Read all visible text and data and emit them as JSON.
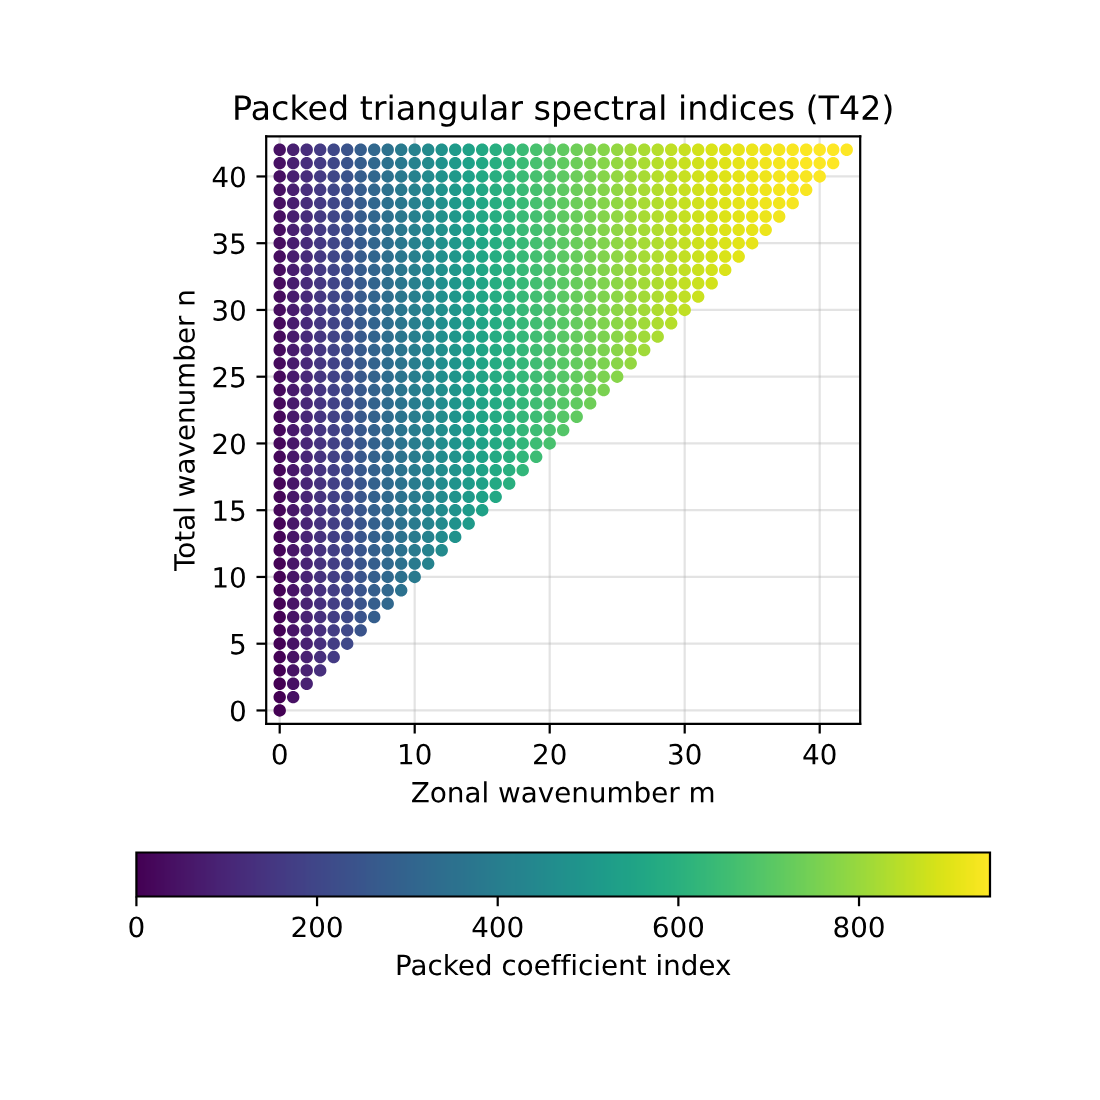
{
  "chart_data": {
    "type": "scatter",
    "title": "Packed triangular spectral indices (T42)",
    "xlabel": "Zonal wavenumber m",
    "ylabel": "Total wavenumber n",
    "clabel": "Packed coefficient index",
    "xlim": [
      -1,
      43
    ],
    "ylim": [
      -1,
      43
    ],
    "xticks": [
      0,
      10,
      20,
      30,
      40
    ],
    "yticks": [
      0,
      5,
      10,
      15,
      20,
      25,
      30,
      35,
      40
    ],
    "clim": [
      0,
      945
    ],
    "cticks": [
      0,
      200,
      400,
      600,
      800
    ],
    "grid": true,
    "marker": "circle",
    "x": [
      0,
      0,
      0,
      0,
      0,
      0,
      0,
      0,
      0,
      0,
      0,
      0,
      0,
      0,
      0,
      0,
      0,
      0,
      0,
      0,
      0,
      0,
      0,
      0,
      0,
      0,
      0,
      0,
      0,
      0,
      0,
      0,
      0,
      0,
      0,
      0,
      0,
      0,
      0,
      0,
      0,
      0,
      0,
      1,
      1,
      1,
      1,
      1,
      1,
      1,
      1,
      1,
      1,
      1,
      1,
      1,
      1,
      1,
      1,
      1,
      1,
      1,
      1,
      1,
      1,
      1,
      1,
      1,
      1,
      1,
      1,
      1,
      1,
      1,
      1,
      1,
      1,
      1,
      1,
      1,
      1,
      1,
      1,
      1,
      1,
      2,
      2,
      2,
      2,
      2,
      2,
      2,
      2,
      2,
      2,
      2,
      2,
      2,
      2,
      2,
      2,
      2,
      2,
      2,
      2,
      2,
      2,
      2,
      2,
      2,
      2,
      2,
      2,
      2,
      2,
      2,
      2,
      2,
      2,
      2,
      2,
      2,
      2,
      2,
      2,
      2,
      3,
      3,
      3,
      3,
      3,
      3,
      3,
      3,
      3,
      3,
      3,
      3,
      3,
      3,
      3,
      3,
      3,
      3,
      3,
      3,
      3,
      3,
      3,
      3,
      3,
      3,
      3,
      3,
      3,
      3,
      3,
      3,
      3,
      3,
      3,
      3,
      3,
      3,
      3,
      3,
      4,
      4,
      4,
      4,
      4,
      4,
      4,
      4,
      4,
      4,
      4,
      4,
      4,
      4,
      4,
      4,
      4,
      4,
      4,
      4,
      4,
      4,
      4,
      4,
      4,
      4,
      4,
      4,
      4,
      4,
      4,
      4,
      4,
      4,
      4,
      4,
      4,
      4,
      4,
      5,
      5,
      5,
      5,
      5,
      5,
      5,
      5,
      5,
      5,
      5,
      5,
      5,
      5,
      5,
      5,
      5,
      5,
      5,
      5,
      5,
      5,
      5,
      5,
      5,
      5,
      5,
      5,
      5,
      5,
      5,
      5,
      5,
      5,
      5,
      5,
      5,
      5,
      6,
      6,
      6,
      6,
      6,
      6,
      6,
      6,
      6,
      6,
      6,
      6,
      6,
      6,
      6,
      6,
      6,
      6,
      6,
      6,
      6,
      6,
      6,
      6,
      6,
      6,
      6,
      6,
      6,
      6,
      6,
      6,
      6,
      6,
      6,
      6,
      6,
      7,
      7,
      7,
      7,
      7,
      7,
      7,
      7,
      7,
      7,
      7,
      7,
      7,
      7,
      7,
      7,
      7,
      7,
      7,
      7,
      7,
      7,
      7,
      7,
      7,
      7,
      7,
      7,
      7,
      7,
      7,
      7,
      7,
      7,
      7,
      7,
      8,
      8,
      8,
      8,
      8,
      8,
      8,
      8,
      8,
      8,
      8,
      8,
      8,
      8,
      8,
      8,
      8,
      8,
      8,
      8,
      8,
      8,
      8,
      8,
      8,
      8,
      8,
      8,
      8,
      8,
      8,
      8,
      8,
      8,
      8,
      9,
      9,
      9,
      9,
      9,
      9,
      9,
      9,
      9,
      9,
      9,
      9,
      9,
      9,
      9,
      9,
      9,
      9,
      9,
      9,
      9,
      9,
      9,
      9,
      9,
      9,
      9,
      9,
      9,
      9,
      9,
      9,
      9,
      9,
      10,
      10,
      10,
      10,
      10,
      10,
      10,
      10,
      10,
      10,
      10,
      10,
      10,
      10,
      10,
      10,
      10,
      10,
      10,
      10,
      10,
      10,
      10,
      10,
      10,
      10,
      10,
      10,
      10,
      10,
      10,
      10,
      10,
      11,
      11,
      11,
      11,
      11,
      11,
      11,
      11,
      11,
      11,
      11,
      11,
      11,
      11,
      11,
      11,
      11,
      11,
      11,
      11,
      11,
      11,
      11,
      11,
      11,
      11,
      11,
      11,
      11,
      11,
      11,
      11,
      12,
      12,
      12,
      12,
      12,
      12,
      12,
      12,
      12,
      12,
      12,
      12,
      12,
      12,
      12,
      12,
      12,
      12,
      12,
      12,
      12,
      12,
      12,
      12,
      12,
      12,
      12,
      12,
      12,
      12,
      12,
      13,
      13,
      13,
      13,
      13,
      13,
      13,
      13,
      13,
      13,
      13,
      13,
      13,
      13,
      13,
      13,
      13,
      13,
      13,
      13,
      13,
      13,
      13,
      13,
      13,
      13,
      13,
      13,
      13,
      13,
      14,
      14,
      14,
      14,
      14,
      14,
      14,
      14,
      14,
      14,
      14,
      14,
      14,
      14,
      14,
      14,
      14,
      14,
      14,
      14,
      14,
      14,
      14,
      14,
      14,
      14,
      14,
      14,
      14,
      15,
      15,
      15,
      15,
      15,
      15,
      15,
      15,
      15,
      15,
      15,
      15,
      15,
      15,
      15,
      15,
      15,
      15,
      15,
      15,
      15,
      15,
      15,
      15,
      15,
      15,
      15,
      15,
      16,
      16,
      16,
      16,
      16,
      16,
      16,
      16,
      16,
      16,
      16,
      16,
      16,
      16,
      16,
      16,
      16,
      16,
      16,
      16,
      16,
      16,
      16,
      16,
      16,
      16,
      16,
      17,
      17,
      17,
      17,
      17,
      17,
      17,
      17,
      17,
      17,
      17,
      17,
      17,
      17,
      17,
      17,
      17,
      17,
      17,
      17,
      17,
      17,
      17,
      17,
      17,
      17,
      18,
      18,
      18,
      18,
      18,
      18,
      18,
      18,
      18,
      18,
      18,
      18,
      18,
      18,
      18,
      18,
      18,
      18,
      18,
      18,
      18,
      18,
      18,
      18,
      18,
      19,
      19,
      19,
      19,
      19,
      19,
      19,
      19,
      19,
      19,
      19,
      19,
      19,
      19,
      19,
      19,
      19,
      19,
      19,
      19,
      19,
      19,
      19,
      19,
      20,
      20,
      20,
      20,
      20,
      20,
      20,
      20,
      20,
      20,
      20,
      20,
      20,
      20,
      20,
      20,
      20,
      20,
      20,
      20,
      20,
      20,
      20,
      21,
      21,
      21,
      21,
      21,
      21,
      21,
      21,
      21,
      21,
      21,
      21,
      21,
      21,
      21,
      21,
      21,
      21,
      21,
      21,
      21,
      21,
      22,
      22,
      22,
      22,
      22,
      22,
      22,
      22,
      22,
      22,
      22,
      22,
      22,
      22,
      22,
      22,
      22,
      22,
      22,
      22,
      22,
      23,
      23,
      23,
      23,
      23,
      23,
      23,
      23,
      23,
      23,
      23,
      23,
      23,
      23,
      23,
      23,
      23,
      23,
      23,
      23,
      24,
      24,
      24,
      24,
      24,
      24,
      24,
      24,
      24,
      24,
      24,
      24,
      24,
      24,
      24,
      24,
      24,
      24,
      24,
      25,
      25,
      25,
      25,
      25,
      25,
      25,
      25,
      25,
      25,
      25,
      25,
      25,
      25,
      25,
      25,
      25,
      25,
      26,
      26,
      26,
      26,
      26,
      26,
      26,
      26,
      26,
      26,
      26,
      26,
      26,
      26,
      26,
      26,
      26,
      27,
      27,
      27,
      27,
      27,
      27,
      27,
      27,
      27,
      27,
      27,
      27,
      27,
      27,
      27,
      27,
      28,
      28,
      28,
      28,
      28,
      28,
      28,
      28,
      28,
      28,
      28,
      28,
      28,
      28,
      28,
      29,
      29,
      29,
      29,
      29,
      29,
      29,
      29,
      29,
      29,
      29,
      29,
      29,
      29,
      30,
      30,
      30,
      30,
      30,
      30,
      30,
      30,
      30,
      30,
      30,
      30,
      30,
      31,
      31,
      31,
      31,
      31,
      31,
      31,
      31,
      31,
      31,
      31,
      31,
      32,
      32,
      32,
      32,
      32,
      32,
      32,
      32,
      32,
      32,
      32,
      33,
      33,
      33,
      33,
      33,
      33,
      33,
      33,
      33,
      33,
      34,
      34,
      34,
      34,
      34,
      34,
      34,
      34,
      34,
      35,
      35,
      35,
      35,
      35,
      35,
      35,
      35,
      36,
      36,
      36,
      36,
      36,
      36,
      36,
      37,
      37,
      37,
      37,
      37,
      37,
      38,
      38,
      38,
      38,
      38,
      39,
      39,
      39,
      39,
      40,
      40,
      40,
      41,
      41,
      42
    ],
    "values": [
      0,
      1,
      2,
      3,
      4,
      5,
      6,
      7,
      8,
      9,
      10,
      11,
      12,
      13,
      14,
      15,
      16,
      17,
      18,
      19,
      20,
      21,
      22,
      23,
      24,
      25,
      26,
      27,
      28,
      29,
      30,
      31,
      32,
      33,
      34,
      35,
      36,
      37,
      38,
      39,
      40,
      41,
      42,
      1,
      2,
      3,
      4,
      5,
      6,
      7,
      8,
      9,
      10,
      11,
      12,
      13,
      14,
      15,
      16,
      17,
      18,
      19,
      20,
      21,
      22,
      23,
      24,
      25,
      26,
      27,
      28,
      29,
      30,
      31,
      32,
      33,
      34,
      35,
      36,
      37,
      38,
      39,
      40,
      41,
      42,
      2,
      3,
      4,
      5,
      6,
      7,
      8,
      9,
      10,
      11,
      12,
      13,
      14,
      15,
      16,
      17,
      18,
      19,
      20,
      21,
      22,
      23,
      24,
      25,
      26,
      27,
      28,
      29,
      30,
      31,
      32,
      33,
      34,
      35,
      36,
      37,
      38,
      39,
      40,
      41,
      42,
      3,
      4,
      5,
      6,
      7,
      8,
      9,
      10,
      11,
      12,
      13,
      14,
      15,
      16,
      17,
      18,
      19,
      20,
      21,
      22,
      23,
      24,
      25,
      26,
      27,
      28,
      29,
      30,
      31,
      32,
      33,
      34,
      35,
      36,
      37,
      38,
      39,
      40,
      41,
      42,
      4,
      5,
      6,
      7,
      8,
      9,
      10,
      11,
      12,
      13,
      14,
      15,
      16,
      17,
      18,
      19,
      20,
      21,
      22,
      23,
      24,
      25,
      26,
      27,
      28,
      29,
      30,
      31,
      32,
      33,
      34,
      35,
      36,
      37,
      38,
      39,
      40,
      41,
      42,
      5,
      6,
      7,
      8,
      9,
      10,
      11,
      12,
      13,
      14,
      15,
      16,
      17,
      18,
      19,
      20,
      21,
      22,
      23,
      24,
      25,
      26,
      27,
      28,
      29,
      30,
      31,
      32,
      33,
      34,
      35,
      36,
      37,
      38,
      39,
      40,
      41,
      42,
      6,
      7,
      8,
      9,
      10,
      11,
      12,
      13,
      14,
      15,
      16,
      17,
      18,
      19,
      20,
      21,
      22,
      23,
      24,
      25,
      26,
      27,
      28,
      29,
      30,
      31,
      32,
      33,
      34,
      35,
      36,
      37,
      38,
      39,
      40,
      41,
      42,
      7,
      8,
      9,
      10,
      11,
      12,
      13,
      14,
      15,
      16,
      17,
      18,
      19,
      20,
      21,
      22,
      23,
      24,
      25,
      26,
      27,
      28,
      29,
      30,
      31,
      32,
      33,
      34,
      35,
      36,
      37,
      38,
      39,
      40,
      41,
      42,
      8,
      9,
      10,
      11,
      12,
      13,
      14,
      15,
      16,
      17,
      18,
      19,
      20,
      21,
      22,
      23,
      24,
      25,
      26,
      27,
      28,
      29,
      30,
      31,
      32,
      33,
      34,
      35,
      36,
      37,
      38,
      39,
      40,
      41,
      42,
      9,
      10,
      11,
      12,
      13,
      14,
      15,
      16,
      17,
      18,
      19,
      20,
      21,
      22,
      23,
      24,
      25,
      26,
      27,
      28,
      29,
      30,
      31,
      32,
      33,
      34,
      35,
      36,
      37,
      38,
      39,
      40,
      41,
      42,
      10,
      11,
      12,
      13,
      14,
      15,
      16,
      17,
      18,
      19,
      20,
      21,
      22,
      23,
      24,
      25,
      26,
      27,
      28,
      29,
      30,
      31,
      32,
      33,
      34,
      35,
      36,
      37,
      38,
      39,
      40,
      41,
      42,
      11,
      12,
      13,
      14,
      15,
      16,
      17,
      18,
      19,
      20,
      21,
      22,
      23,
      24,
      25,
      26,
      27,
      28,
      29,
      30,
      31,
      32,
      33,
      34,
      35,
      36,
      37,
      38,
      39,
      40,
      41,
      42,
      12,
      13,
      14,
      15,
      16,
      17,
      18,
      19,
      20,
      21,
      22,
      23,
      24,
      25,
      26,
      27,
      28,
      29,
      30,
      31,
      32,
      33,
      34,
      35,
      36,
      37,
      38,
      39,
      40,
      41,
      42,
      13,
      14,
      15,
      16,
      17,
      18,
      19,
      20,
      21,
      22,
      23,
      24,
      25,
      26,
      27,
      28,
      29,
      30,
      31,
      32,
      33,
      34,
      35,
      36,
      37,
      38,
      39,
      40,
      41,
      42,
      14,
      15,
      16,
      17,
      18,
      19,
      20,
      21,
      22,
      23,
      24,
      25,
      26,
      27,
      28,
      29,
      30,
      31,
      32,
      33,
      34,
      35,
      36,
      37,
      38,
      39,
      40,
      41,
      42,
      15,
      16,
      17,
      18,
      19,
      20,
      21,
      22,
      23,
      24,
      25,
      26,
      27,
      28,
      29,
      30,
      31,
      32,
      33,
      34,
      35,
      36,
      37,
      38,
      39,
      40,
      41,
      42,
      16,
      17,
      18,
      19,
      20,
      21,
      22,
      23,
      24,
      25,
      26,
      27,
      28,
      29,
      30,
      31,
      32,
      33,
      34,
      35,
      36,
      37,
      38,
      39,
      40,
      41,
      42,
      17,
      18,
      19,
      20,
      21,
      22,
      23,
      24,
      25,
      26,
      27,
      28,
      29,
      30,
      31,
      32,
      33,
      34,
      35,
      36,
      37,
      38,
      39,
      40,
      41,
      42,
      18,
      19,
      20,
      21,
      22,
      23,
      24,
      25,
      26,
      27,
      28,
      29,
      30,
      31,
      32,
      33,
      34,
      35,
      36,
      37,
      38,
      39,
      40,
      41,
      42,
      19,
      20,
      21,
      22,
      23,
      24,
      25,
      26,
      27,
      28,
      29,
      30,
      31,
      32,
      33,
      34,
      35,
      36,
      37,
      38,
      39,
      40,
      41,
      42,
      20,
      21,
      22,
      23,
      24,
      25,
      26,
      27,
      28,
      29,
      30,
      31,
      32,
      33,
      34,
      35,
      36,
      37,
      38,
      39,
      40,
      41,
      42,
      21,
      22,
      23,
      24,
      25,
      26,
      27,
      28,
      29,
      30,
      31,
      32,
      33,
      34,
      35,
      36,
      37,
      38,
      39,
      40,
      41,
      42,
      22,
      23,
      24,
      25,
      26,
      27,
      28,
      29,
      30,
      31,
      32,
      33,
      34,
      35,
      36,
      37,
      38,
      39,
      40,
      41,
      42,
      23,
      24,
      25,
      26,
      27,
      28,
      29,
      30,
      31,
      32,
      33,
      34,
      35,
      36,
      37,
      38,
      39,
      40,
      41,
      42,
      24,
      25,
      26,
      27,
      28,
      29,
      30,
      31,
      32,
      33,
      34,
      35,
      36,
      37,
      38,
      39,
      40,
      41,
      42,
      25,
      26,
      27,
      28,
      29,
      30,
      31,
      32,
      33,
      34,
      35,
      36,
      37,
      38,
      39,
      40,
      41,
      42,
      26,
      27,
      28,
      29,
      30,
      31,
      32,
      33,
      34,
      35,
      36,
      37,
      38,
      39,
      40,
      41,
      42,
      27,
      28,
      29,
      30,
      31,
      32,
      33,
      34,
      35,
      36,
      37,
      38,
      39,
      40,
      41,
      42,
      28,
      29,
      30,
      31,
      32,
      33,
      34,
      35,
      36,
      37,
      38,
      39,
      40,
      41,
      42,
      29,
      30,
      31,
      32,
      33,
      34,
      35,
      36,
      37,
      38,
      39,
      40,
      41,
      42,
      30,
      31,
      32,
      33,
      34,
      35,
      36,
      37,
      38,
      39,
      40,
      41,
      42,
      31,
      32,
      33,
      34,
      35,
      36,
      37,
      38,
      39,
      40,
      41,
      42,
      32,
      33,
      34,
      35,
      36,
      37,
      38,
      39,
      40,
      41,
      42,
      33,
      34,
      35,
      36,
      37,
      38,
      39,
      40,
      41,
      42,
      34,
      35,
      36,
      37,
      38,
      39,
      40,
      41,
      42,
      35,
      36,
      37,
      38,
      39,
      40,
      41,
      42,
      36,
      37,
      38,
      39,
      40,
      41,
      42,
      37,
      38,
      39,
      40,
      41,
      42,
      38,
      39,
      40,
      41,
      42,
      39,
      40,
      41,
      42,
      40,
      41,
      42,
      41,
      42,
      42
    ],
    "cvalues": [
      0,
      1,
      2,
      3,
      4,
      5,
      6,
      7,
      8,
      9,
      10,
      11,
      12,
      13,
      14,
      15,
      16,
      17,
      18,
      19,
      20,
      21,
      22,
      23,
      24,
      25,
      26,
      27,
      28,
      29,
      30,
      31,
      32,
      33,
      34,
      35,
      36,
      37,
      38,
      39,
      40,
      41,
      42,
      43,
      44,
      45,
      46,
      47,
      48,
      49,
      50,
      51,
      52,
      53,
      54,
      55,
      56,
      57,
      58,
      59,
      60,
      61,
      62,
      63,
      64,
      65,
      66,
      67,
      68,
      69,
      70,
      71,
      72,
      73,
      74,
      75,
      76,
      77,
      78,
      79,
      80,
      81,
      82,
      83,
      84,
      85,
      86,
      87,
      88,
      89,
      90,
      91,
      92,
      93,
      94,
      95,
      96,
      97,
      98,
      99,
      100,
      101,
      102,
      103,
      104,
      105,
      106,
      107,
      108,
      109,
      110,
      111,
      112,
      113,
      114,
      115,
      116,
      117,
      118,
      119,
      120,
      121,
      122,
      123,
      124,
      125,
      126,
      127,
      128,
      129,
      130,
      131,
      132,
      133,
      134,
      135,
      136,
      137,
      138,
      139,
      140,
      141,
      142,
      143,
      144,
      145,
      146,
      147,
      148,
      149,
      150,
      151,
      152,
      153,
      154,
      155,
      156,
      157,
      158,
      159,
      160,
      161,
      162,
      163,
      164,
      165,
      166,
      167,
      168,
      169,
      170,
      171,
      172,
      173,
      174,
      175,
      176,
      177,
      178,
      179,
      180,
      181,
      182,
      183,
      184,
      185,
      186,
      187,
      188,
      189,
      190,
      191,
      192,
      193,
      194,
      195,
      196,
      197,
      198,
      199,
      200,
      201,
      202,
      203,
      204,
      205,
      206,
      207,
      208,
      209,
      210,
      211,
      212,
      213,
      214,
      215,
      216,
      217,
      218,
      219,
      220,
      221,
      222,
      223,
      224,
      225,
      226,
      227,
      228,
      229,
      230,
      231,
      232,
      233,
      234,
      235,
      236,
      237,
      238,
      239,
      240,
      241,
      242,
      243,
      244,
      245,
      246,
      247,
      248,
      249,
      250,
      251,
      252,
      253,
      254,
      255,
      256,
      257,
      258,
      259,
      260,
      261,
      262,
      263,
      264,
      265,
      266,
      267,
      268,
      269,
      270,
      271,
      272,
      273,
      274,
      275,
      276,
      277,
      278,
      279,
      280,
      281,
      282,
      283,
      284,
      285,
      286,
      287,
      288,
      289,
      290,
      291,
      292,
      293,
      294,
      295,
      296,
      297,
      298,
      299,
      300,
      301,
      302,
      303,
      304,
      305,
      306,
      307,
      308,
      309,
      310,
      311,
      312,
      313,
      314,
      315,
      316,
      317,
      318,
      319,
      320,
      321,
      322,
      323,
      324,
      325,
      326,
      327,
      328,
      329,
      330,
      331,
      332,
      333,
      334,
      335,
      336,
      337,
      338,
      339,
      340,
      341,
      342,
      343,
      344,
      345,
      346,
      347,
      348,
      349,
      350,
      351,
      352,
      353,
      354,
      355,
      356,
      357,
      358,
      359,
      360,
      361,
      362,
      363,
      364,
      365,
      366,
      367,
      368,
      369,
      370,
      371,
      372,
      373,
      374,
      375,
      376,
      377,
      378,
      379,
      380,
      381,
      382,
      383,
      384,
      385,
      386,
      387,
      388,
      389,
      390,
      391,
      392,
      393,
      394,
      395,
      396,
      397,
      398,
      399,
      400,
      401,
      402,
      403,
      404,
      405,
      406,
      407,
      408,
      409,
      410,
      411,
      412,
      413,
      414,
      415,
      416,
      417,
      418,
      419,
      420,
      421,
      422,
      423,
      424,
      425,
      426,
      427,
      428,
      429,
      430,
      431,
      432,
      433,
      434,
      435,
      436,
      437,
      438,
      439,
      440,
      441,
      442,
      443,
      444,
      445,
      446,
      447,
      448,
      449,
      450,
      451,
      452,
      453,
      454,
      455,
      456,
      457,
      458,
      459,
      460,
      461,
      462,
      463,
      464,
      465,
      466,
      467,
      468,
      469,
      470,
      471,
      472,
      473,
      474,
      475,
      476,
      477,
      478,
      479,
      480,
      481,
      482,
      483,
      484,
      485,
      486,
      487,
      488,
      489,
      490,
      491,
      492,
      493,
      494,
      495,
      496,
      497,
      498,
      499,
      500,
      501,
      502,
      503,
      504,
      505,
      506,
      507,
      508,
      509,
      510,
      511,
      512,
      513,
      514,
      515,
      516,
      517,
      518,
      519,
      520,
      521,
      522,
      523,
      524,
      525,
      526,
      527,
      528,
      529,
      530,
      531,
      532,
      533,
      534,
      535,
      536,
      537,
      538,
      539,
      540,
      541,
      542,
      543,
      544,
      545,
      546,
      547,
      548,
      549,
      550,
      551,
      552,
      553,
      554,
      555,
      556,
      557,
      558,
      559,
      560,
      561,
      562,
      563,
      564,
      565,
      566,
      567,
      568,
      569,
      570,
      571,
      572,
      573,
      574,
      575,
      576,
      577,
      578,
      579,
      580,
      581,
      582,
      583,
      584,
      585,
      586,
      587,
      588,
      589,
      590,
      591,
      592,
      593,
      594,
      595,
      596,
      597,
      598,
      599,
      600,
      601,
      602,
      603,
      604,
      605,
      606,
      607,
      608,
      609,
      610,
      611,
      612,
      613,
      614,
      615,
      616,
      617,
      618,
      619,
      620,
      621,
      622,
      623,
      624,
      625,
      626,
      627,
      628,
      629,
      630,
      631,
      632,
      633,
      634,
      635,
      636,
      637,
      638,
      639,
      640,
      641,
      642,
      643,
      644,
      645,
      646,
      647,
      648,
      649,
      650,
      651,
      652,
      653,
      654,
      655,
      656,
      657,
      658,
      659,
      660,
      661,
      662,
      663,
      664,
      665,
      666,
      667,
      668,
      669,
      670,
      671,
      672,
      673,
      674,
      675,
      676,
      677,
      678,
      679,
      680,
      681,
      682,
      683,
      684,
      685,
      686,
      687,
      688,
      689,
      690,
      691,
      692,
      693,
      694,
      695,
      696,
      697,
      698,
      699,
      700,
      701,
      702,
      703,
      704,
      705,
      706,
      707,
      708,
      709,
      710,
      711,
      712,
      713,
      714,
      715,
      716,
      717,
      718,
      719,
      720,
      721,
      722,
      723,
      724,
      725,
      726,
      727,
      728,
      729,
      730,
      731,
      732,
      733,
      734,
      735,
      736,
      737,
      738,
      739,
      740,
      741,
      742,
      743,
      744,
      745,
      746,
      747,
      748,
      749,
      750,
      751,
      752,
      753,
      754,
      755,
      756,
      757,
      758,
      759,
      760,
      761,
      762,
      763,
      764,
      765,
      766,
      767,
      768,
      769,
      770,
      771,
      772,
      773,
      774,
      775,
      776,
      777,
      778,
      779,
      780,
      781,
      782,
      783,
      784,
      785,
      786,
      787,
      788,
      789,
      790,
      791,
      792,
      793,
      794,
      795,
      796,
      797,
      798,
      799,
      800,
      801,
      802,
      803,
      804,
      805,
      806,
      807,
      808,
      809,
      810,
      811,
      812,
      813,
      814,
      815,
      816,
      817,
      818,
      819,
      820,
      821,
      822,
      823,
      824,
      825,
      826,
      827,
      828,
      829,
      830,
      831,
      832,
      833,
      834,
      835,
      836,
      837,
      838,
      839,
      840,
      841,
      842,
      843,
      844,
      845,
      846,
      847,
      848,
      849,
      850,
      851,
      852,
      853,
      854,
      855,
      856,
      857,
      858,
      859,
      860,
      861,
      862,
      863,
      864,
      865,
      866,
      867,
      868,
      869,
      870,
      871,
      872,
      873,
      874,
      875,
      876,
      877,
      878,
      879,
      880,
      881,
      882,
      883,
      884,
      885,
      886,
      887,
      888,
      889,
      890,
      891,
      892,
      893,
      894,
      895,
      896,
      897,
      898,
      899,
      900,
      901,
      902,
      903,
      904,
      905,
      906,
      907,
      908,
      909,
      910,
      911,
      912,
      913,
      914,
      915,
      916,
      917,
      918,
      919,
      920,
      921,
      922,
      923,
      924,
      925,
      926,
      927,
      928,
      929,
      930,
      931,
      932,
      933,
      934,
      935,
      936,
      937,
      938,
      939,
      940,
      941,
      942,
      943,
      944,
      945
    ]
  }
}
